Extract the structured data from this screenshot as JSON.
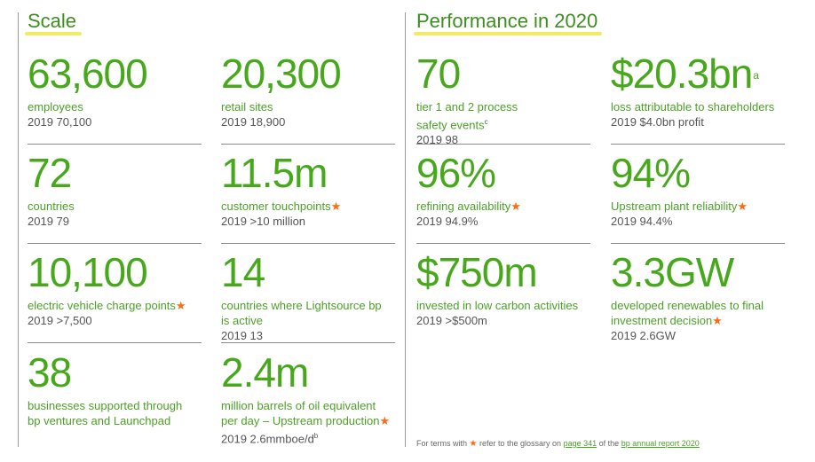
{
  "scale": {
    "title": "Scale",
    "metrics": [
      {
        "value": "63,600",
        "label": "employees",
        "prev": "2019 70,100"
      },
      {
        "value": "20,300",
        "label": "retail sites",
        "prev": "2019 18,900"
      },
      {
        "value": "72",
        "label": "countries",
        "prev": "2019 79"
      },
      {
        "value": "11.5m",
        "label": "customer touchpoints",
        "prev": "2019 >10 million"
      },
      {
        "value": "10,100",
        "label": "electric vehicle charge points",
        "prev": "2019 >7,500"
      },
      {
        "value": "14",
        "label_l1": "countries where Lightsource bp",
        "label_l2": "is active",
        "prev": "2019 13"
      },
      {
        "value": "38",
        "label_l1": "businesses supported through",
        "label_l2": "bp ventures and Launchpad"
      },
      {
        "value": "2.4m",
        "label_l1": "million barrels of oil equivalent",
        "label_l2": "per day – Upstream production",
        "prev": "2019 2.6mmboe/d",
        "prev_sup": "b"
      }
    ]
  },
  "performance": {
    "title": "Performance in 2020",
    "metrics": [
      {
        "value": "70",
        "label_l1": "tier 1 and 2 process",
        "label_l2": "safety events",
        "label_sup": "c",
        "prev": "2019 98"
      },
      {
        "value": "$20.3bn",
        "value_sup": "a",
        "label": "loss attributable to shareholders",
        "prev": "2019 $4.0bn profit"
      },
      {
        "value": "96%",
        "label": "refining availability",
        "prev": "2019 94.9%"
      },
      {
        "value": "94%",
        "label": "Upstream plant reliability",
        "prev": "2019 94.4%"
      },
      {
        "value": "$750m",
        "label": "invested in low carbon activities",
        "prev": "2019 >$500m"
      },
      {
        "value": "3.3GW",
        "label_l1": "developed renewables to final",
        "label_l2": "investment decision",
        "prev": "2019 2.6GW"
      }
    ]
  },
  "footnote": {
    "pre": "For terms with",
    "mid": "refer to the glossary on",
    "page_link": "page 341",
    "of": "of the",
    "report_link": "bp annual report 2020"
  },
  "colors": {
    "value_green": "#47a81c",
    "label_green": "#4c9f27",
    "star_orange": "#ff6a13",
    "highlight_yellow": "#f0e84a"
  },
  "icons": {
    "star": "★"
  }
}
